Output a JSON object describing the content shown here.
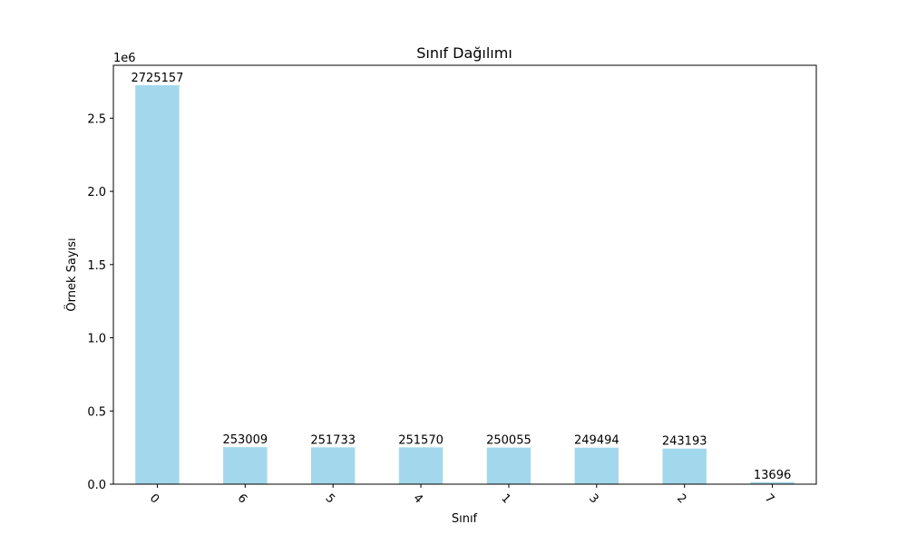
{
  "chart_data": {
    "type": "bar",
    "title": "Sınıf Dağılımı",
    "xlabel": "Sınıf",
    "ylabel": "Örnek Sayısı",
    "y_scale_note": "1e6",
    "categories": [
      "0",
      "6",
      "5",
      "4",
      "1",
      "3",
      "2",
      "7"
    ],
    "values": [
      2725157,
      253009,
      251733,
      251570,
      250055,
      249494,
      243193,
      13696
    ],
    "value_labels": [
      "2725157",
      "253009",
      "251733",
      "251570",
      "250055",
      "249494",
      "243193",
      "13696"
    ],
    "ylim": [
      0,
      2861415
    ],
    "yticks": [
      0,
      500000,
      1000000,
      1500000,
      2000000,
      2500000
    ],
    "ytick_labels": [
      "0.0",
      "0.5",
      "1.0",
      "1.5",
      "2.0",
      "2.5"
    ],
    "bar_color": "#a3d8ec",
    "grid": false,
    "legend": "none"
  }
}
